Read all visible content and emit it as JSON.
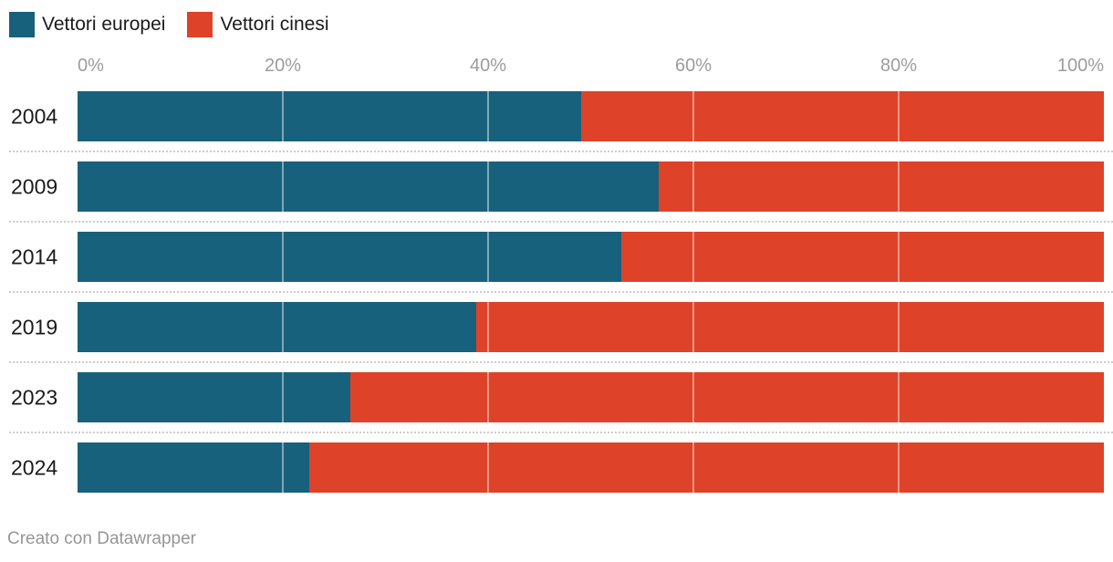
{
  "legend": [
    {
      "label": "Vettori europei",
      "color": "#17617c"
    },
    {
      "label": "Vettori cinesi",
      "color": "#de4228"
    }
  ],
  "chart_data": {
    "type": "bar",
    "orientation": "horizontal",
    "stacked": true,
    "unit": "%",
    "categories": [
      "2004",
      "2009",
      "2014",
      "2019",
      "2023",
      "2024"
    ],
    "series": [
      {
        "name": "Vettori europei",
        "color": "#17617c",
        "values": [
          49.1,
          56.6,
          53.0,
          38.8,
          26.6,
          22.6
        ]
      },
      {
        "name": "Vettori cinesi",
        "color": "#de4228",
        "values": [
          50.9,
          43.4,
          47.0,
          61.2,
          73.4,
          77.4
        ]
      }
    ],
    "x_axis": {
      "range": [
        0,
        100
      ],
      "ticks": [
        {
          "label": "0%",
          "value": 0
        },
        {
          "label": "20%",
          "value": 20
        },
        {
          "label": "40%",
          "value": 40
        },
        {
          "label": "60%",
          "value": 60
        },
        {
          "label": "80%",
          "value": 80
        },
        {
          "label": "100%",
          "value": 100
        }
      ],
      "gridlines": [
        20,
        40,
        60,
        80
      ]
    },
    "legend_position": "top-left",
    "title": "",
    "xlabel": "",
    "ylabel": ""
  },
  "footer": {
    "attribution": "Creato con Datawrapper"
  },
  "colors": {
    "europei": "#17617c",
    "cinesi": "#de4228",
    "axis_label": "#9c9c9c",
    "gridline_on_bar": "rgba(255,255,255,0.45)",
    "row_separator": "#cdcdcd",
    "text": "#1a1a1a",
    "footer_text": "#969696",
    "background": "#ffffff"
  }
}
